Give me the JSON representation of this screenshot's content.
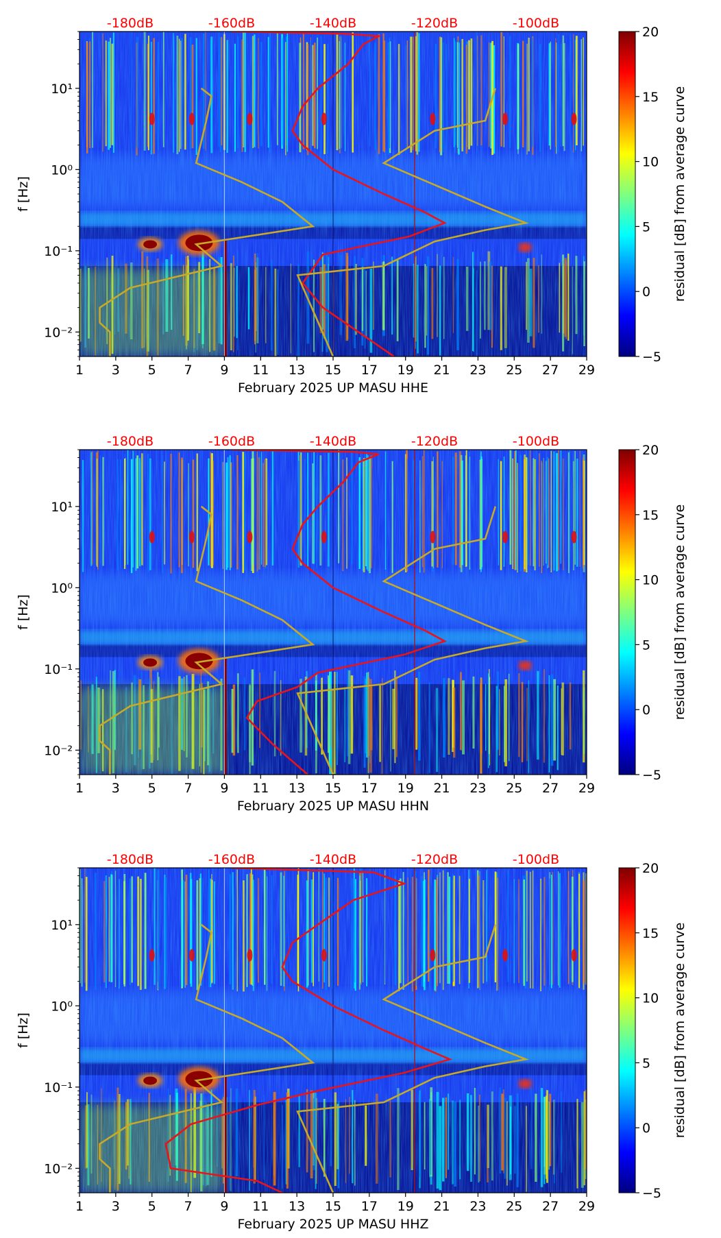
{
  "figure": {
    "colorbar_label": "residual [dB] from average curve",
    "colorbar_ticks": [
      20,
      15,
      10,
      5,
      0,
      -5
    ],
    "colormap": [
      "#00007f",
      "#0000ff",
      "#007fff",
      "#00ffff",
      "#7fff7f",
      "#ffff00",
      "#ff7f00",
      "#ff0000",
      "#7f0000"
    ],
    "power_ticks": [
      "-180dB",
      "-160dB",
      "-140dB",
      "-120dB",
      "-100dB"
    ],
    "power_tick_color": "#ff0000",
    "noise_model_color": "#c8aa28",
    "average_curve_color": "#e8141a"
  },
  "chart_data": [
    {
      "type": "heatmap",
      "channel": "HHE",
      "xlabel": "February 2025 UP MASU  HHE",
      "ylabel": "f [Hz]",
      "x_ticks": [
        "1",
        "3",
        "5",
        "7",
        "9",
        "11",
        "13",
        "15",
        "17",
        "19",
        "21",
        "23",
        "25",
        "27",
        "29"
      ],
      "xlim": [
        1,
        29
      ],
      "y_ticks": [
        "10⁻²",
        "10⁻¹",
        "10⁰",
        "10¹"
      ],
      "ylim_hz": [
        0.005,
        50
      ],
      "clim": [
        -5,
        20
      ],
      "power_axis_db": [
        -190,
        -90
      ],
      "avg_curve": [
        {
          "db": -160,
          "f": 50
        },
        {
          "db": -138,
          "f": 47
        },
        {
          "db": -131,
          "f": 44
        },
        {
          "db": -134,
          "f": 35
        },
        {
          "db": -137,
          "f": 20
        },
        {
          "db": -143,
          "f": 10
        },
        {
          "db": -146,
          "f": 6
        },
        {
          "db": -148,
          "f": 3
        },
        {
          "db": -146,
          "f": 2
        },
        {
          "db": -140,
          "f": 1
        },
        {
          "db": -130,
          "f": 0.5
        },
        {
          "db": -122,
          "f": 0.3
        },
        {
          "db": -118,
          "f": 0.22
        },
        {
          "db": -125,
          "f": 0.15
        },
        {
          "db": -142,
          "f": 0.09
        },
        {
          "db": -144,
          "f": 0.06
        },
        {
          "db": -146,
          "f": 0.04
        },
        {
          "db": -142,
          "f": 0.02
        },
        {
          "db": -135,
          "f": 0.01
        },
        {
          "db": -128,
          "f": 0.005
        }
      ]
    },
    {
      "type": "heatmap",
      "channel": "HHN",
      "xlabel": "February 2025 UP MASU  HHN",
      "ylabel": "f [Hz]",
      "x_ticks": [
        "1",
        "3",
        "5",
        "7",
        "9",
        "11",
        "13",
        "15",
        "17",
        "19",
        "21",
        "23",
        "25",
        "27",
        "29"
      ],
      "xlim": [
        1,
        29
      ],
      "y_ticks": [
        "10⁻²",
        "10⁻¹",
        "10⁰",
        "10¹"
      ],
      "ylim_hz": [
        0.005,
        50
      ],
      "clim": [
        -5,
        20
      ],
      "power_axis_db": [
        -190,
        -90
      ],
      "avg_curve": [
        {
          "db": -160,
          "f": 50
        },
        {
          "db": -136,
          "f": 47
        },
        {
          "db": -131,
          "f": 44
        },
        {
          "db": -135,
          "f": 35
        },
        {
          "db": -138,
          "f": 20
        },
        {
          "db": -143,
          "f": 10
        },
        {
          "db": -146,
          "f": 6
        },
        {
          "db": -148,
          "f": 3
        },
        {
          "db": -146,
          "f": 2
        },
        {
          "db": -140,
          "f": 1
        },
        {
          "db": -130,
          "f": 0.5
        },
        {
          "db": -122,
          "f": 0.3
        },
        {
          "db": -118,
          "f": 0.22
        },
        {
          "db": -126,
          "f": 0.15
        },
        {
          "db": -143,
          "f": 0.09
        },
        {
          "db": -147,
          "f": 0.06
        },
        {
          "db": -155,
          "f": 0.04
        },
        {
          "db": -157,
          "f": 0.025
        },
        {
          "db": -152,
          "f": 0.012
        },
        {
          "db": -145,
          "f": 0.005
        }
      ]
    },
    {
      "type": "heatmap",
      "channel": "HHZ",
      "xlabel": "February 2025 UP MASU  HHZ",
      "ylabel": "f [Hz]",
      "x_ticks": [
        "1",
        "3",
        "5",
        "7",
        "9",
        "11",
        "13",
        "15",
        "17",
        "19",
        "21",
        "23",
        "25",
        "27",
        "29"
      ],
      "xlim": [
        1,
        29
      ],
      "y_ticks": [
        "10⁻²",
        "10⁻¹",
        "10⁰",
        "10¹"
      ],
      "ylim_hz": [
        0.005,
        50
      ],
      "clim": [
        -5,
        20
      ],
      "power_axis_db": [
        -190,
        -90
      ],
      "avg_curve": [
        {
          "db": -160,
          "f": 50
        },
        {
          "db": -132,
          "f": 44
        },
        {
          "db": -126,
          "f": 32
        },
        {
          "db": -136,
          "f": 20
        },
        {
          "db": -143,
          "f": 10
        },
        {
          "db": -148,
          "f": 6
        },
        {
          "db": -150,
          "f": 3
        },
        {
          "db": -148,
          "f": 2
        },
        {
          "db": -140,
          "f": 1
        },
        {
          "db": -130,
          "f": 0.5
        },
        {
          "db": -122,
          "f": 0.3
        },
        {
          "db": -117,
          "f": 0.22
        },
        {
          "db": -126,
          "f": 0.15
        },
        {
          "db": -143,
          "f": 0.09
        },
        {
          "db": -155,
          "f": 0.06
        },
        {
          "db": -168,
          "f": 0.035
        },
        {
          "db": -173,
          "f": 0.02
        },
        {
          "db": -172,
          "f": 0.01
        },
        {
          "db": -155,
          "f": 0.007
        },
        {
          "db": -150,
          "f": 0.005
        }
      ]
    }
  ],
  "noise_models": {
    "high_curve": [
      {
        "db": -108,
        "f": 10
      },
      {
        "db": -110,
        "f": 4
      },
      {
        "db": -120,
        "f": 3
      },
      {
        "db": -130,
        "f": 1.2
      },
      {
        "db": -110,
        "f": 0.35
      },
      {
        "db": -102,
        "f": 0.22
      },
      {
        "db": -110,
        "f": 0.18
      },
      {
        "db": -120,
        "f": 0.13
      },
      {
        "db": -130,
        "f": 0.065
      },
      {
        "db": -147,
        "f": 0.05
      },
      {
        "db": -140,
        "f": 0.005
      }
    ],
    "low_curve": [
      {
        "db": -166,
        "f": 10
      },
      {
        "db": -164,
        "f": 8
      },
      {
        "db": -165,
        "f": 4
      },
      {
        "db": -167,
        "f": 1.2
      },
      {
        "db": -158,
        "f": 0.7
      },
      {
        "db": -150,
        "f": 0.4
      },
      {
        "db": -144,
        "f": 0.2
      },
      {
        "db": -167,
        "f": 0.12
      },
      {
        "db": -162,
        "f": 0.065
      },
      {
        "db": -180,
        "f": 0.035
      },
      {
        "db": -186,
        "f": 0.02
      },
      {
        "db": -186,
        "f": 0.013
      },
      {
        "db": -184,
        "f": 0.01
      },
      {
        "db": -184,
        "f": 0.005
      }
    ]
  }
}
